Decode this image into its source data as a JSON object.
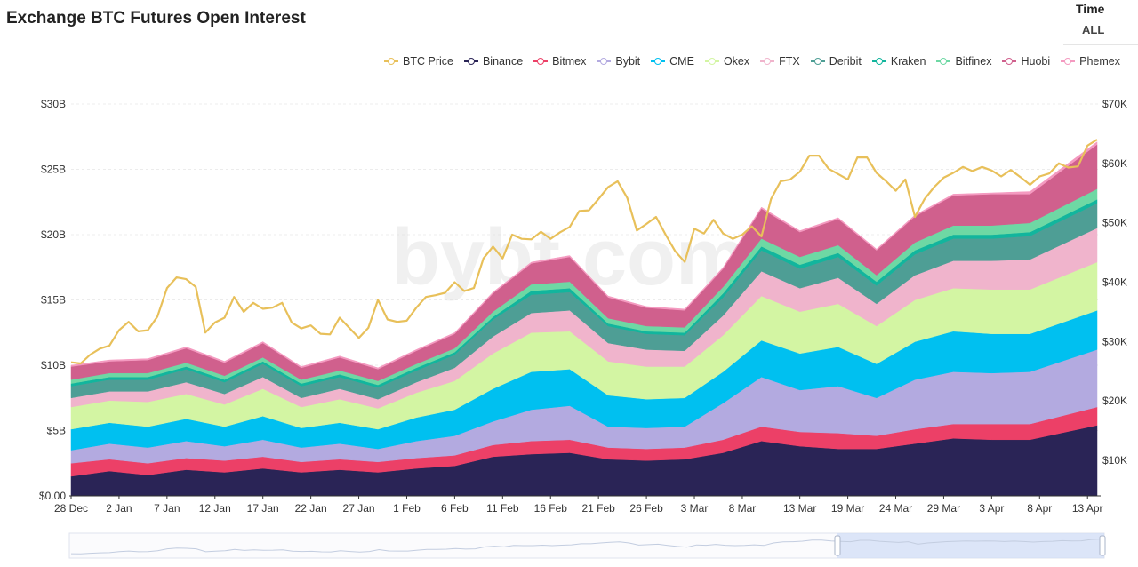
{
  "header": {
    "title": "Exchange BTC Futures Open Interest"
  },
  "time": {
    "label": "Time",
    "value": "ALL"
  },
  "chart_data": {
    "type": "area",
    "stacked": true,
    "title": "Exchange BTC Futures Open Interest",
    "left_axis": {
      "ticks": [
        "$0.00",
        "$5B",
        "$10B",
        "$15B",
        "$20B",
        "$25B",
        "$30B"
      ],
      "min": 0,
      "max": 30,
      "unit": "B"
    },
    "right_axis": {
      "ticks": [
        "$10K",
        "$20K",
        "$30K",
        "$40K",
        "$50K",
        "$60K",
        "$70K"
      ],
      "min": 4,
      "max": 70,
      "unit": "K"
    },
    "x_labels": [
      "28 Dec",
      "2 Jan",
      "7 Jan",
      "12 Jan",
      "17 Jan",
      "22 Jan",
      "27 Jan",
      "1 Feb",
      "6 Feb",
      "11 Feb",
      "16 Feb",
      "21 Feb",
      "26 Feb",
      "3 Mar",
      "8 Mar",
      "13 Mar",
      "19 Mar",
      "24 Mar",
      "29 Mar",
      "3 Apr",
      "8 Apr",
      "13 Apr"
    ],
    "legend_position": "top-right",
    "grid": true,
    "series": [
      {
        "name": "Binance",
        "color": "#2a2456",
        "values": [
          1.5,
          1.9,
          1.6,
          2.0,
          1.8,
          2.1,
          1.8,
          2.0,
          1.8,
          2.1,
          2.3,
          3.0,
          3.2,
          3.3,
          2.8,
          2.7,
          2.8,
          3.3,
          4.2,
          3.8,
          3.6,
          3.6,
          4.0,
          4.4,
          4.3,
          4.3,
          5.4
        ]
      },
      {
        "name": "Bitmex",
        "color": "#ec4067",
        "values": [
          1.0,
          0.9,
          0.9,
          0.9,
          0.9,
          0.9,
          0.8,
          0.8,
          0.8,
          0.8,
          0.8,
          0.9,
          1.0,
          1.0,
          0.9,
          0.9,
          0.9,
          1.0,
          1.1,
          1.1,
          1.2,
          1.0,
          1.1,
          1.1,
          1.2,
          1.2,
          1.4
        ]
      },
      {
        "name": "Bybit",
        "color": "#b3aae0",
        "values": [
          1.0,
          1.2,
          1.2,
          1.3,
          1.1,
          1.3,
          1.1,
          1.2,
          1.0,
          1.3,
          1.5,
          1.8,
          2.4,
          2.6,
          1.6,
          1.6,
          1.6,
          2.8,
          3.8,
          3.2,
          3.6,
          2.9,
          3.8,
          4.0,
          3.9,
          4.0,
          4.4
        ]
      },
      {
        "name": "CME",
        "color": "#00c0f0",
        "values": [
          1.6,
          1.6,
          1.6,
          1.7,
          1.5,
          1.8,
          1.5,
          1.6,
          1.5,
          1.8,
          2.0,
          2.5,
          2.9,
          2.8,
          2.4,
          2.2,
          2.2,
          2.4,
          2.8,
          2.8,
          3.0,
          2.6,
          2.9,
          3.1,
          3.0,
          2.9,
          3.0
        ]
      },
      {
        "name": "Okex",
        "color": "#d3f5a3",
        "values": [
          1.7,
          1.7,
          1.9,
          1.9,
          1.7,
          2.1,
          1.6,
          1.8,
          1.6,
          1.9,
          2.2,
          2.7,
          3.0,
          2.9,
          2.6,
          2.5,
          2.4,
          2.8,
          3.4,
          3.2,
          3.3,
          2.9,
          3.2,
          3.3,
          3.4,
          3.4,
          3.7
        ]
      },
      {
        "name": "FTX",
        "color": "#f0b4cc",
        "values": [
          0.7,
          0.7,
          0.8,
          0.9,
          0.8,
          0.9,
          0.7,
          0.8,
          0.7,
          0.8,
          1.0,
          1.3,
          1.5,
          1.6,
          1.4,
          1.3,
          1.2,
          1.5,
          1.9,
          1.8,
          2.0,
          1.7,
          1.9,
          2.1,
          2.2,
          2.3,
          2.6
        ]
      },
      {
        "name": "Deribit",
        "color": "#4e9e95",
        "values": [
          0.9,
          0.9,
          0.9,
          1.0,
          0.9,
          1.0,
          0.9,
          0.9,
          0.9,
          0.9,
          1.0,
          1.3,
          1.4,
          1.4,
          1.3,
          1.2,
          1.2,
          1.4,
          1.6,
          1.5,
          1.6,
          1.4,
          1.6,
          1.7,
          1.7,
          1.8,
          1.9
        ]
      },
      {
        "name": "Kraken",
        "color": "#12b59d",
        "values": [
          0.2,
          0.2,
          0.2,
          0.2,
          0.2,
          0.2,
          0.2,
          0.2,
          0.2,
          0.2,
          0.2,
          0.2,
          0.3,
          0.3,
          0.2,
          0.2,
          0.2,
          0.3,
          0.3,
          0.3,
          0.3,
          0.3,
          0.3,
          0.3,
          0.3,
          0.3,
          0.3
        ]
      },
      {
        "name": "Bitfinex",
        "color": "#6ed8a4",
        "values": [
          0.3,
          0.3,
          0.3,
          0.3,
          0.3,
          0.3,
          0.3,
          0.3,
          0.3,
          0.3,
          0.3,
          0.4,
          0.5,
          0.5,
          0.4,
          0.4,
          0.4,
          0.5,
          0.6,
          0.6,
          0.6,
          0.5,
          0.6,
          0.7,
          0.7,
          0.7,
          0.8
        ]
      },
      {
        "name": "Huobi",
        "color": "#d0608d",
        "values": [
          1.0,
          0.9,
          1.0,
          1.1,
          1.0,
          1.1,
          0.9,
          1.0,
          0.9,
          1.0,
          1.1,
          1.4,
          1.6,
          1.9,
          1.6,
          1.4,
          1.3,
          1.4,
          2.3,
          1.9,
          2.0,
          1.9,
          2.0,
          2.3,
          2.4,
          2.2,
          3.4
        ]
      },
      {
        "name": "Phemex",
        "color": "#f49ac0",
        "values": [
          0.1,
          0.1,
          0.1,
          0.1,
          0.1,
          0.1,
          0.1,
          0.1,
          0.1,
          0.1,
          0.1,
          0.1,
          0.1,
          0.1,
          0.1,
          0.1,
          0.1,
          0.1,
          0.1,
          0.1,
          0.1,
          0.1,
          0.1,
          0.1,
          0.1,
          0.2,
          0.2
        ]
      }
    ],
    "oi_day_index": [
      0,
      4,
      8,
      12,
      16,
      20,
      24,
      28,
      32,
      36,
      40,
      44,
      48,
      52,
      56,
      60,
      64,
      68,
      72,
      76,
      80,
      84,
      88,
      92,
      96,
      100,
      107
    ],
    "btc_price": {
      "name": "BTC Price",
      "color": "#e8c05a",
      "day_index": [
        0,
        1,
        2,
        3,
        4,
        5,
        6,
        7,
        8,
        9,
        10,
        11,
        12,
        13,
        14,
        15,
        16,
        17,
        18,
        19,
        20,
        21,
        22,
        23,
        24,
        25,
        26,
        27,
        28,
        29,
        30,
        31,
        32,
        33,
        34,
        35,
        36,
        37,
        38,
        39,
        40,
        41,
        42,
        43,
        44,
        45,
        46,
        47,
        48,
        49,
        50,
        51,
        52,
        53,
        54,
        55,
        56,
        57,
        58,
        59,
        60,
        61,
        62,
        63,
        64,
        65,
        66,
        67,
        68,
        69,
        70,
        71,
        72,
        73,
        74,
        75,
        76,
        77,
        78,
        79,
        80,
        81,
        82,
        83,
        84,
        85,
        86,
        87,
        88,
        89,
        90,
        91,
        92,
        93,
        94,
        95,
        96,
        97,
        98,
        99,
        100,
        101,
        102,
        103,
        104,
        105,
        106,
        107
      ],
      "values": [
        26.5,
        26.3,
        27.8,
        28.8,
        29.3,
        31.9,
        33.3,
        31.7,
        31.9,
        34.2,
        39.0,
        40.8,
        40.5,
        39.2,
        31.5,
        33.2,
        34.0,
        37.5,
        35.0,
        36.5,
        35.5,
        35.7,
        36.5,
        33.2,
        32.2,
        32.7,
        31.3,
        31.2,
        34.0,
        32.3,
        30.6,
        32.3,
        37.0,
        33.7,
        33.3,
        33.5,
        35.7,
        37.5,
        37.8,
        38.2,
        40.0,
        38.5,
        39.0,
        44.0,
        46.0,
        44.0,
        48.0,
        47.3,
        47.2,
        48.5,
        47.3,
        48.4,
        49.3,
        52.0,
        52.1,
        54.0,
        56.0,
        57.0,
        54.2,
        48.7,
        49.8,
        51.0,
        48.0,
        45.2,
        43.4,
        49.0,
        48.2,
        50.5,
        48.2,
        47.3,
        48.0,
        49.4,
        47.7,
        54.0,
        57.0,
        57.3,
        58.6,
        61.3,
        61.3,
        59.1,
        58.2,
        57.3,
        61.0,
        61.0,
        58.4,
        57.0,
        55.4,
        57.3,
        51.0,
        54.0,
        56.0,
        57.6,
        58.4,
        59.4,
        58.7,
        59.4,
        58.8,
        57.8,
        58.9,
        57.7,
        56.4,
        57.8,
        58.3,
        60.0,
        59.3,
        59.5,
        63.0,
        64.0
      ]
    }
  }
}
